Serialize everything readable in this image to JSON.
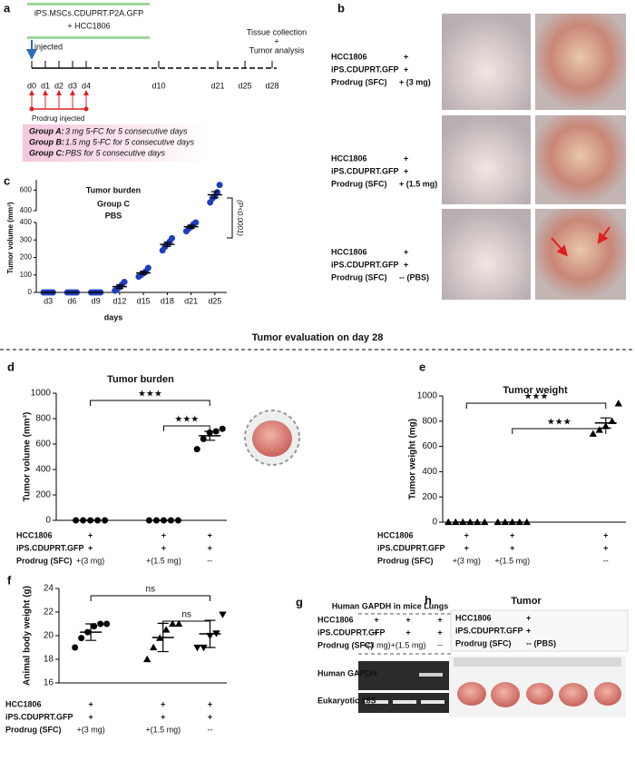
{
  "panel_labels": [
    "a",
    "b",
    "c",
    "d",
    "e",
    "f",
    "g",
    "h"
  ],
  "section_title": "Tumor evaluation on day 28",
  "timeline": {
    "treatment": [
      "iPS.MSCs.CDUPRT.P2A.GFP",
      "+ HCC1806"
    ],
    "injected": "injected",
    "days": [
      "d0",
      "d1",
      "d2",
      "d3",
      "d4",
      "d10",
      "d21",
      "d25",
      "d28"
    ],
    "endpoint": [
      "Tissue collection",
      "+",
      "Tumor analysis"
    ],
    "prodrug": "Prodrug injected",
    "groups": [
      {
        "name": "Group A:",
        "text": "3 mg 5-FC for 5 consecutive days"
      },
      {
        "name": "Group B:",
        "text": "1.5 mg 5-FC for 5 consecutive days"
      },
      {
        "name": "Group C:",
        "text": "PBS for 5 consecutive days"
      }
    ]
  },
  "panel_b": {
    "rows": [
      [
        [
          "HCC1806",
          "+"
        ],
        [
          "iPS.CDUPRT.GFP",
          "+"
        ],
        [
          "Prodrug (SFC)",
          "+ (3 mg)"
        ]
      ],
      [
        [
          "HCC1806",
          "+"
        ],
        [
          "iPS.CDUPRT.GFP",
          "+"
        ],
        [
          "Prodrug (SFC)",
          "+ (1.5 mg)"
        ]
      ],
      [
        [
          "HCC1806",
          "+"
        ],
        [
          "iPS.CDUPRT.GFP",
          "+"
        ],
        [
          "Prodrug (SFC)",
          "-- (PBS)"
        ]
      ]
    ]
  },
  "chart_data": [
    {
      "type": "dot_broken",
      "title": "Tumor burden",
      "subtitle": [
        "Group C",
        "PBS"
      ],
      "ylabel": "Tumor volume (mm³)",
      "xlabel": "days",
      "annotation": "(P<0.0001)",
      "color": "#1f3fbf",
      "categories": [
        "d3",
        "d6",
        "d9",
        "d12",
        "d15",
        "d18",
        "d21",
        "d25"
      ],
      "points": [
        [
          0,
          0,
          0,
          0,
          0
        ],
        [
          0,
          0,
          0,
          0,
          0
        ],
        [
          0,
          0,
          0,
          0,
          0
        ],
        [
          10,
          20,
          30,
          45,
          60
        ],
        [
          90,
          100,
          110,
          120,
          140
        ],
        [
          240,
          260,
          275,
          290,
          310
        ],
        [
          350,
          365,
          375,
          390,
          400
        ],
        [
          480,
          520,
          540,
          580,
          650
        ]
      ],
      "means": [
        0,
        0,
        0,
        33,
        112,
        275,
        376,
        554
      ],
      "errors": [
        0,
        0,
        0,
        10,
        9,
        12,
        9,
        30
      ],
      "ylim_lower": [
        0,
        400
      ],
      "yticks_lower": [
        0,
        100,
        200,
        300,
        400
      ],
      "ylim_upper": [
        400,
        700
      ],
      "yticks_upper": [
        400,
        600
      ]
    },
    {
      "type": "dot",
      "title": "Tumor burden",
      "ylabel": "Tumor volume (mm³)",
      "color": "#000000",
      "markers": [
        "circle",
        "circle",
        "circle"
      ],
      "points": [
        [
          0,
          0,
          0,
          0,
          0
        ],
        [
          0,
          0,
          0,
          0,
          0
        ],
        [
          560,
          640,
          690,
          700,
          720
        ]
      ],
      "means": [
        0,
        0,
        665
      ],
      "errors": [
        0,
        0,
        35
      ],
      "ylim": [
        0,
        1000
      ],
      "yticks": [
        0,
        200,
        400,
        600,
        800,
        1000
      ],
      "significance": [
        "★★★",
        "★★★"
      ],
      "conditions": [
        {
          "label": "HCC1806",
          "values": [
            "+",
            "+",
            "+"
          ]
        },
        {
          "label": "iPS.CDUPRT.GFP",
          "values": [
            "+",
            "+",
            "+"
          ]
        },
        {
          "label": "Prodrug (SFC)",
          "values": [
            "+(3 mg)",
            "+(1.5 mg)",
            "--"
          ]
        }
      ]
    },
    {
      "type": "dot",
      "title": "Tumor weight",
      "ylabel": "Tumor weight (mg)",
      "color": "#000000",
      "markers": [
        "triangle",
        "triangle",
        "triangle"
      ],
      "points": [
        [
          0,
          0,
          0,
          0,
          0,
          0
        ],
        [
          0,
          0,
          0,
          0,
          0
        ],
        [
          700,
          730,
          760,
          800,
          940
        ]
      ],
      "means": [
        0,
        0,
        786
      ],
      "errors": [
        0,
        0,
        40
      ],
      "ylim": [
        0,
        1000
      ],
      "yticks": [
        0,
        200,
        400,
        600,
        800,
        1000
      ],
      "significance": [
        "★★★",
        "★★★"
      ],
      "conditions": [
        {
          "label": "HCC1806",
          "values": [
            "+",
            "+",
            "+"
          ]
        },
        {
          "label": "iPS.CDUPRT.GFP",
          "values": [
            "+",
            "+",
            "+"
          ]
        },
        {
          "label": "Prodrug (SFC)",
          "values": [
            "+(3 mg)",
            "+(1.5 mg)",
            "--"
          ]
        }
      ]
    },
    {
      "type": "dot",
      "ylabel": "Animal body weight (g)",
      "color": "#000000",
      "markers": [
        "circle",
        "triangle",
        "triangle-down"
      ],
      "points": [
        [
          19.0,
          19.8,
          20.3,
          20.8,
          21.0,
          21.0
        ],
        [
          18.0,
          19.0,
          19.8,
          20.5,
          21.0,
          21.0
        ],
        [
          19.0,
          19.0,
          20.0,
          20.2,
          21.8
        ]
      ],
      "means": [
        20.3,
        19.85,
        20.15
      ],
      "errors": [
        0.7,
        1.2,
        1.15
      ],
      "ylim": [
        16,
        24
      ],
      "yticks": [
        16,
        18,
        20,
        22,
        24
      ],
      "significance": [
        "ns",
        "ns"
      ],
      "conditions": [
        {
          "label": "HCC1806",
          "values": [
            "+",
            "+",
            "+"
          ]
        },
        {
          "label": "iPS.CDUPRT.GFP",
          "values": [
            "+",
            "+",
            "+"
          ]
        },
        {
          "label": "Prodrug (SFC)",
          "values": [
            "+(3 mg)",
            "+(1.5 mg)",
            "--"
          ]
        }
      ]
    }
  ],
  "panel_g": {
    "title": "Human GAPDH in mice Lungs",
    "conditions": [
      {
        "label": "HCC1806",
        "values": [
          "+",
          "+",
          "+"
        ]
      },
      {
        "label": "iPS.CDUPRT.GFP",
        "values": [
          "+",
          "+",
          "+"
        ]
      },
      {
        "label": "Prodrug (SFC)",
        "values": [
          "+(3 mg)",
          "+(1.5 mg)",
          "--"
        ]
      }
    ],
    "bands": [
      "Human GAPDH",
      "Eukaryotic 18S"
    ]
  },
  "panel_h": {
    "title": "Tumor",
    "rows": [
      [
        "HCC1806",
        "+"
      ],
      [
        "iPS.CDUPRT.GFP",
        "+"
      ],
      [
        "Prodrug (SFC)",
        "-- (PBS)"
      ]
    ]
  }
}
